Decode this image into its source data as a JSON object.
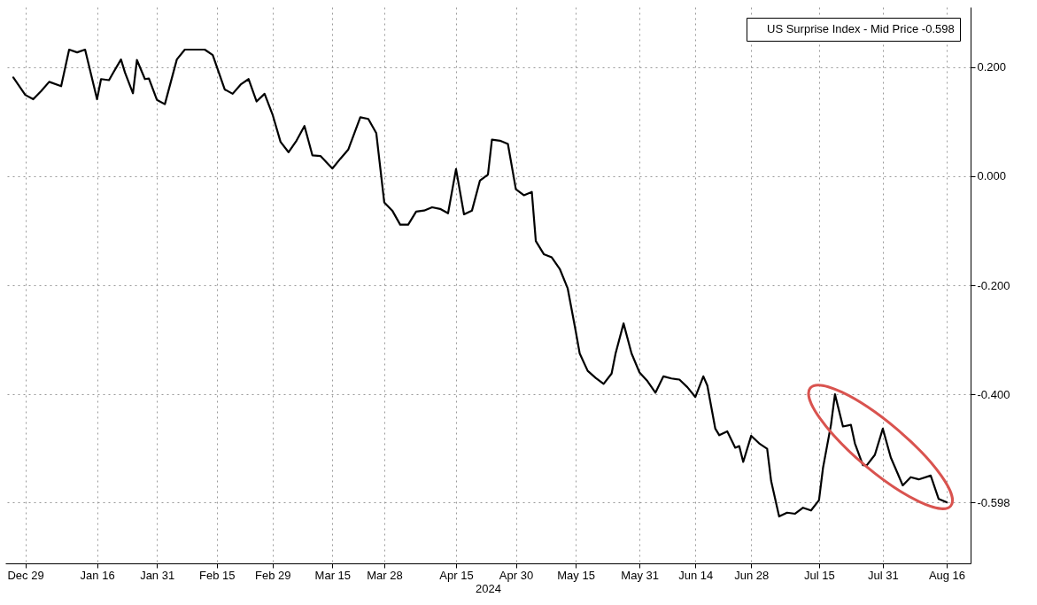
{
  "chart_data": {
    "type": "line",
    "xlabel": "2024",
    "x": [
      "2023-12-26",
      "2023-12-29",
      "2023-12-31",
      "2024-01-02",
      "2024-01-04",
      "2024-01-07",
      "2024-01-09",
      "2024-01-11",
      "2024-01-13",
      "2024-01-16",
      "2024-01-17",
      "2024-01-19",
      "2024-01-20",
      "2024-01-22",
      "2024-01-23",
      "2024-01-25",
      "2024-01-26",
      "2024-01-28",
      "2024-01-29",
      "2024-01-31",
      "2024-02-02",
      "2024-02-05",
      "2024-02-07",
      "2024-02-12",
      "2024-02-14",
      "2024-02-17",
      "2024-02-19",
      "2024-02-21",
      "2024-02-23",
      "2024-02-25",
      "2024-02-27",
      "2024-02-29",
      "2024-03-02",
      "2024-03-04",
      "2024-03-06",
      "2024-03-08",
      "2024-03-10",
      "2024-03-12",
      "2024-03-15",
      "2024-03-17",
      "2024-03-19",
      "2024-03-22",
      "2024-03-24",
      "2024-03-26",
      "2024-03-28",
      "2024-03-30",
      "2024-04-01",
      "2024-04-03",
      "2024-04-05",
      "2024-04-07",
      "2024-04-09",
      "2024-04-11",
      "2024-04-13",
      "2024-04-15",
      "2024-04-17",
      "2024-04-19",
      "2024-04-21",
      "2024-04-23",
      "2024-04-24",
      "2024-04-26",
      "2024-04-28",
      "2024-04-30",
      "2024-05-02",
      "2024-05-04",
      "2024-05-05",
      "2024-05-07",
      "2024-05-09",
      "2024-05-11",
      "2024-05-13",
      "2024-05-15",
      "2024-05-16",
      "2024-05-18",
      "2024-05-20",
      "2024-05-22",
      "2024-05-24",
      "2024-05-25",
      "2024-05-27",
      "2024-05-29",
      "2024-05-31",
      "2024-06-02",
      "2024-06-04",
      "2024-06-06",
      "2024-06-08",
      "2024-06-10",
      "2024-06-12",
      "2024-06-14",
      "2024-06-16",
      "2024-06-17",
      "2024-06-19",
      "2024-06-20",
      "2024-06-22",
      "2024-06-24",
      "2024-06-25",
      "2024-06-26",
      "2024-06-28",
      "2024-06-30",
      "2024-07-02",
      "2024-07-03",
      "2024-07-05",
      "2024-07-07",
      "2024-07-09",
      "2024-07-11",
      "2024-07-13",
      "2024-07-15",
      "2024-07-16",
      "2024-07-18",
      "2024-07-19",
      "2024-07-21",
      "2024-07-23",
      "2024-07-24",
      "2024-07-26",
      "2024-07-27",
      "2024-07-29",
      "2024-07-31",
      "2024-08-02",
      "2024-08-05",
      "2024-08-07",
      "2024-08-09",
      "2024-08-12",
      "2024-08-14",
      "2024-08-16"
    ],
    "series": [
      {
        "name": "US Surprise Index - Mid Price -0.598",
        "color": "#000000",
        "values": [
          0.181,
          0.149,
          0.141,
          0.156,
          0.173,
          0.165,
          0.232,
          0.227,
          0.232,
          0.141,
          0.178,
          0.176,
          0.189,
          0.214,
          0.19,
          0.152,
          0.213,
          0.178,
          0.179,
          0.14,
          0.132,
          0.214,
          0.232,
          0.232,
          0.222,
          0.159,
          0.151,
          0.168,
          0.178,
          0.137,
          0.151,
          0.113,
          0.063,
          0.044,
          0.065,
          0.092,
          0.038,
          0.037,
          0.014,
          0.032,
          0.049,
          0.108,
          0.105,
          0.079,
          -0.048,
          -0.063,
          -0.089,
          -0.089,
          -0.065,
          -0.063,
          -0.057,
          -0.06,
          -0.068,
          0.013,
          -0.07,
          -0.063,
          -0.008,
          0.003,
          0.067,
          0.065,
          0.059,
          -0.024,
          -0.035,
          -0.029,
          -0.119,
          -0.143,
          -0.149,
          -0.17,
          -0.206,
          -0.284,
          -0.325,
          -0.357,
          -0.37,
          -0.381,
          -0.362,
          -0.325,
          -0.27,
          -0.325,
          -0.36,
          -0.376,
          -0.397,
          -0.367,
          -0.371,
          -0.373,
          -0.387,
          -0.405,
          -0.367,
          -0.384,
          -0.463,
          -0.475,
          -0.468,
          -0.498,
          -0.495,
          -0.524,
          -0.476,
          -0.49,
          -0.5,
          -0.559,
          -0.624,
          -0.617,
          -0.619,
          -0.608,
          -0.613,
          -0.594,
          -0.535,
          -0.456,
          -0.4,
          -0.459,
          -0.456,
          -0.49,
          -0.53,
          -0.53,
          -0.511,
          -0.463,
          -0.516,
          -0.567,
          -0.552,
          -0.556,
          -0.549,
          -0.592,
          -0.598
        ]
      }
    ],
    "xlim": [
      "2023-12-24",
      "2024-08-22"
    ],
    "xticks": [
      {
        "value": "2023-12-29",
        "label": "Dec 29"
      },
      {
        "value": "2024-01-16",
        "label": "Jan 16"
      },
      {
        "value": "2024-01-31",
        "label": "Jan 31"
      },
      {
        "value": "2024-02-15",
        "label": "Feb 15"
      },
      {
        "value": "2024-02-29",
        "label": "Feb 29"
      },
      {
        "value": "2024-03-15",
        "label": "Mar 15"
      },
      {
        "value": "2024-03-28",
        "label": "Mar 28"
      },
      {
        "value": "2024-04-15",
        "label": "Apr 15"
      },
      {
        "value": "2024-04-30",
        "label": "Apr 30"
      },
      {
        "value": "2024-05-15",
        "label": "May 15"
      },
      {
        "value": "2024-05-31",
        "label": "May 31"
      },
      {
        "value": "2024-06-14",
        "label": "Jun 14"
      },
      {
        "value": "2024-06-28",
        "label": "Jun 28"
      },
      {
        "value": "2024-07-15",
        "label": "Jul 15"
      },
      {
        "value": "2024-07-31",
        "label": "Jul 31"
      },
      {
        "value": "2024-08-16",
        "label": "Aug 16"
      }
    ],
    "ylim": [
      -0.71,
      0.31
    ],
    "yticks": [
      {
        "value": 0.2,
        "label": "0.200"
      },
      {
        "value": 0,
        "label": "0.000"
      },
      {
        "value": -0.2,
        "label": "-0.200"
      },
      {
        "value": -0.4,
        "label": "-0.400"
      },
      {
        "value": -0.598,
        "label": "-0.598"
      }
    ],
    "grid": true,
    "legend": "top right",
    "line_style": "solid"
  }
}
